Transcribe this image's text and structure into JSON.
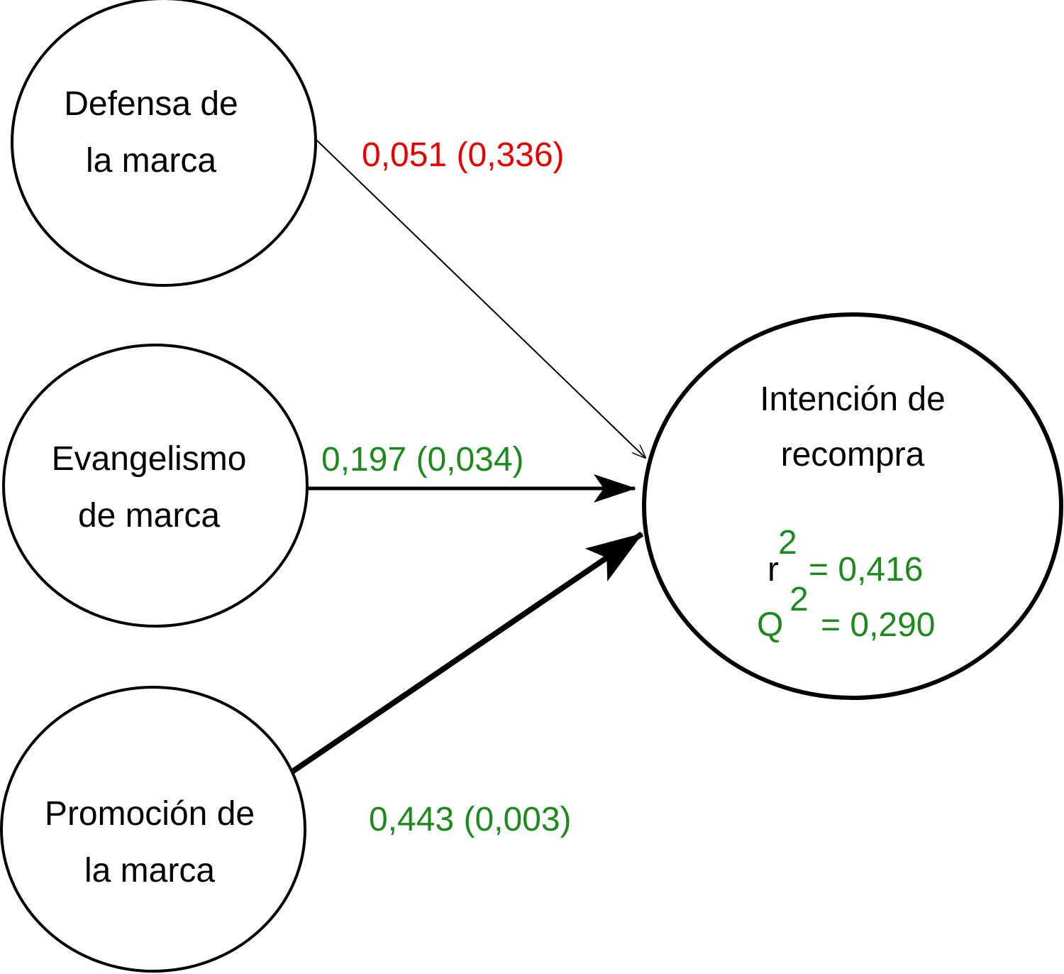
{
  "nodes": [
    {
      "lines": [
        "Defensa de",
        "la marca"
      ]
    },
    {
      "lines": [
        "Evangelismo",
        "de marca"
      ]
    },
    {
      "lines": [
        "Promoción de",
        "la marca"
      ]
    },
    {
      "lines": [
        "Intención de",
        "recompra"
      ]
    }
  ],
  "edges": [
    {
      "label": "0,051 (0,336)"
    },
    {
      "label": "0,197 (0,034)"
    },
    {
      "label": "0,443 (0,003)"
    }
  ],
  "stats": [
    {
      "symbol": "r",
      "exponent": "2",
      "value": "= 0,416"
    },
    {
      "symbol": "Q",
      "exponent": "2",
      "value": "= 0,290"
    }
  ]
}
